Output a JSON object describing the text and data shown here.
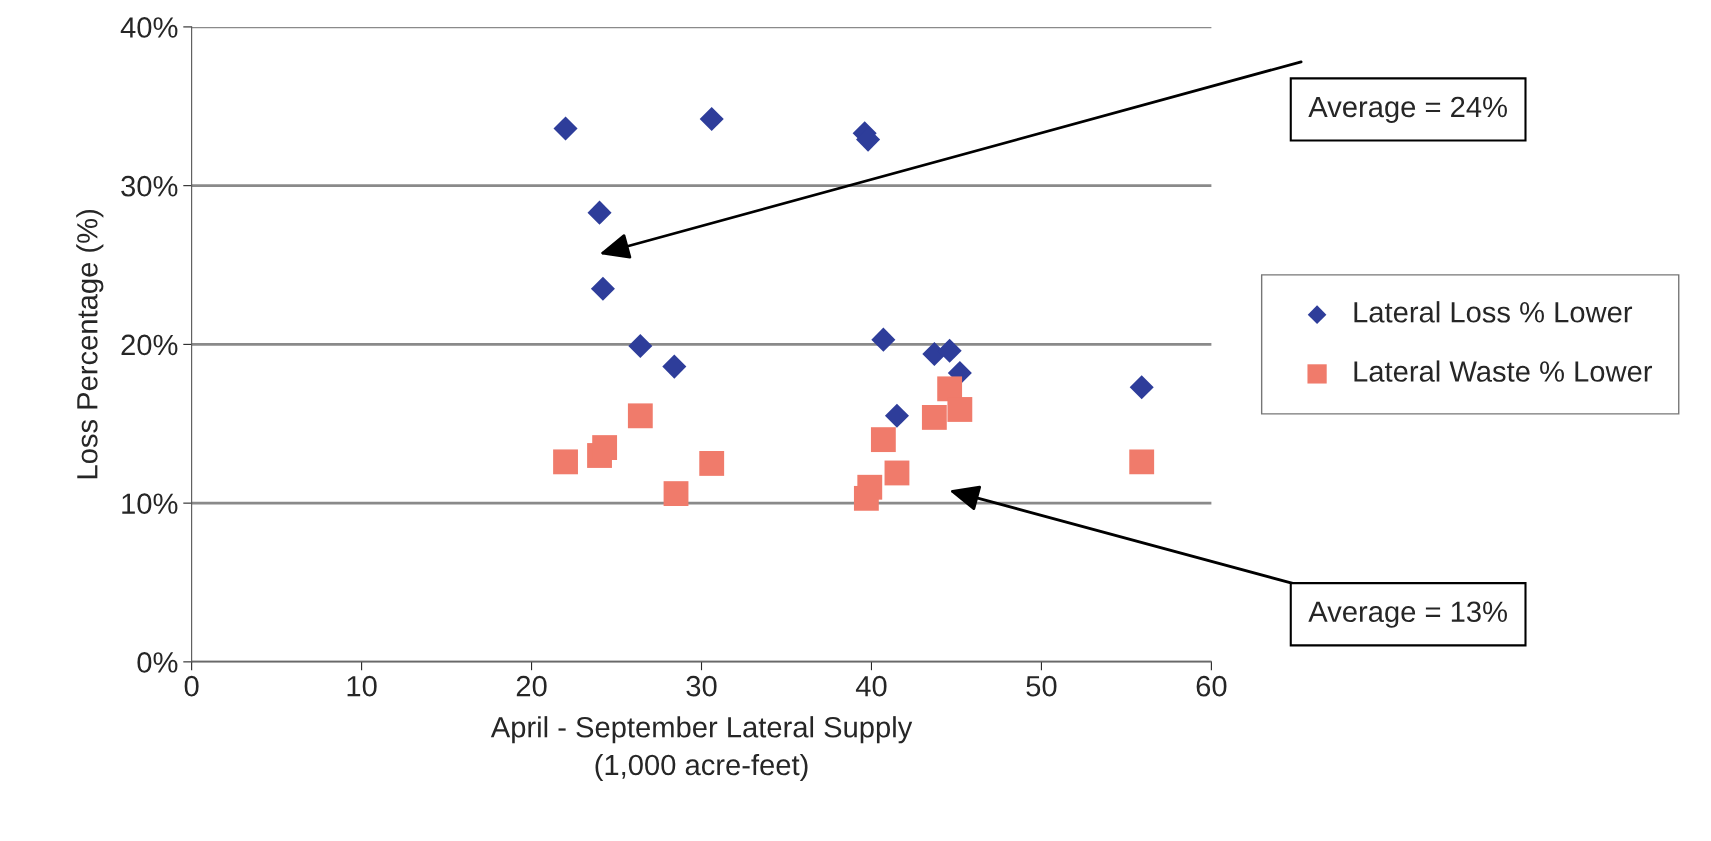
{
  "chart_data": {
    "type": "scatter",
    "xlabel": "April - September Lateral Supply\n(1,000 acre-feet)",
    "ylabel": "Loss Percentage (%)",
    "series": [
      {
        "name": "Lateral Loss % Lower",
        "color": "#2e3d9a",
        "marker": "diamond",
        "x": [
          22.0,
          24.0,
          24.2,
          26.4,
          28.4,
          30.6,
          39.6,
          39.8,
          40.7,
          41.5,
          43.7,
          44.6,
          45.2,
          55.9
        ],
        "values": [
          33.6,
          28.3,
          23.5,
          19.9,
          18.6,
          34.2,
          33.3,
          32.9,
          20.3,
          15.5,
          19.4,
          19.6,
          18.2,
          17.3
        ]
      },
      {
        "name": "Lateral Waste % Lower",
        "color": "#f07b6b",
        "marker": "square",
        "x": [
          22.0,
          24.0,
          24.3,
          26.4,
          28.5,
          30.6,
          39.7,
          39.9,
          40.7,
          41.5,
          43.7,
          44.6,
          45.2,
          55.9
        ],
        "values": [
          12.6,
          13.0,
          13.5,
          15.5,
          10.6,
          12.5,
          10.3,
          11.0,
          14.0,
          11.9,
          15.4,
          17.2,
          15.9,
          12.6
        ]
      }
    ],
    "xlim": [
      0,
      60
    ],
    "xticks": [
      0,
      10,
      20,
      30,
      40,
      50,
      60
    ],
    "ylim": [
      0,
      40
    ],
    "yticks": [
      {
        "value": 0,
        "label": "0%"
      },
      {
        "value": 10,
        "label": "10%"
      },
      {
        "value": 20,
        "label": "20%"
      },
      {
        "value": 30,
        "label": "30%"
      },
      {
        "value": 40,
        "label": "40%"
      }
    ],
    "grid": "y",
    "legend": "right",
    "annotations": [
      "Average = 24%",
      "Average = 13%"
    ]
  }
}
